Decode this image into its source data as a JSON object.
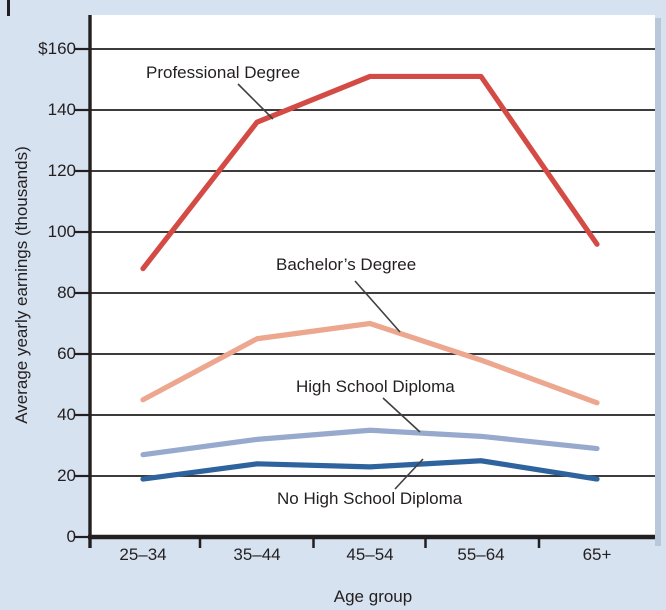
{
  "chart_data": {
    "type": "line",
    "title": "",
    "xlabel": "Age group",
    "ylabel": "Average yearly earnings (thousands)",
    "categories": [
      "25–34",
      "35–44",
      "45–54",
      "55–64",
      "65+"
    ],
    "y_tick_labels": [
      "$160",
      "140",
      "120",
      "100",
      "80",
      "60",
      "40",
      "20",
      "0"
    ],
    "y_tick_values": [
      160,
      140,
      120,
      100,
      80,
      60,
      40,
      20,
      0
    ],
    "ylim": [
      0,
      171
    ],
    "grid": "horizontal",
    "legend": "inline-annotated-labels",
    "series": [
      {
        "name": "Professional Degree",
        "color": "#d34b44",
        "values": [
          88,
          136,
          151,
          151,
          96
        ]
      },
      {
        "name": "Bachelor’s Degree",
        "color": "#eca78e",
        "values": [
          45,
          65,
          70,
          58,
          44
        ]
      },
      {
        "name": "High School Diploma",
        "color": "#98a9ce",
        "values": [
          27,
          32,
          35,
          33,
          29
        ]
      },
      {
        "name": "No High School Diploma",
        "color": "#2f639e",
        "values": [
          19,
          24,
          23,
          25,
          19
        ]
      }
    ],
    "colors": {
      "background": "#d7e2f0",
      "plot_background": "#ffffff",
      "axis": "#231f20",
      "shadow": "#b9c8d9",
      "leader_line": "#404040"
    }
  }
}
